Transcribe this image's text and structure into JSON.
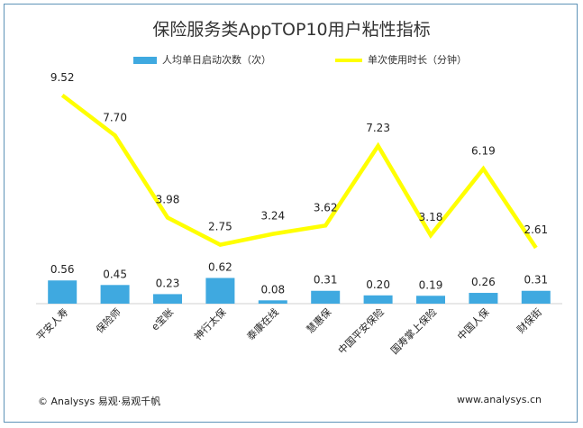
{
  "chart_data": {
    "type": "bar+line",
    "title": "保险服务类AppTOP10用户粘性指标",
    "categories": [
      "平安人寿",
      "保险师",
      "e宝账",
      "神行太保",
      "泰康在线",
      "慧惠保",
      "中国平安保险",
      "国寿掌上保险",
      "中国人保",
      "财保街"
    ],
    "series": [
      {
        "name": "人均单日启动次数（次）",
        "type": "bar",
        "color": "#3fa9e0",
        "values": [
          0.56,
          0.45,
          0.23,
          0.62,
          0.08,
          0.31,
          0.2,
          0.19,
          0.26,
          0.31
        ]
      },
      {
        "name": "单次使用时长（分钟）",
        "type": "line",
        "color": "#ffff00",
        "values": [
          9.52,
          7.7,
          3.98,
          2.75,
          3.24,
          3.62,
          7.23,
          3.18,
          6.19,
          2.61
        ]
      }
    ],
    "labels": {
      "bar": [
        "0.56",
        "0.45",
        "0.23",
        "0.62",
        "0.08",
        "0.31",
        "0.20",
        "0.19",
        "0.26",
        "0.31"
      ],
      "line": [
        "9.52",
        "7.70",
        "3.98",
        "2.75",
        "3.24",
        "3.62",
        "7.23",
        "3.18",
        "6.19",
        "2.61"
      ]
    },
    "legend_position": "top"
  },
  "footer": {
    "left": "© Analysys 易观·易观千帆",
    "right": "www.analysys.cn"
  }
}
